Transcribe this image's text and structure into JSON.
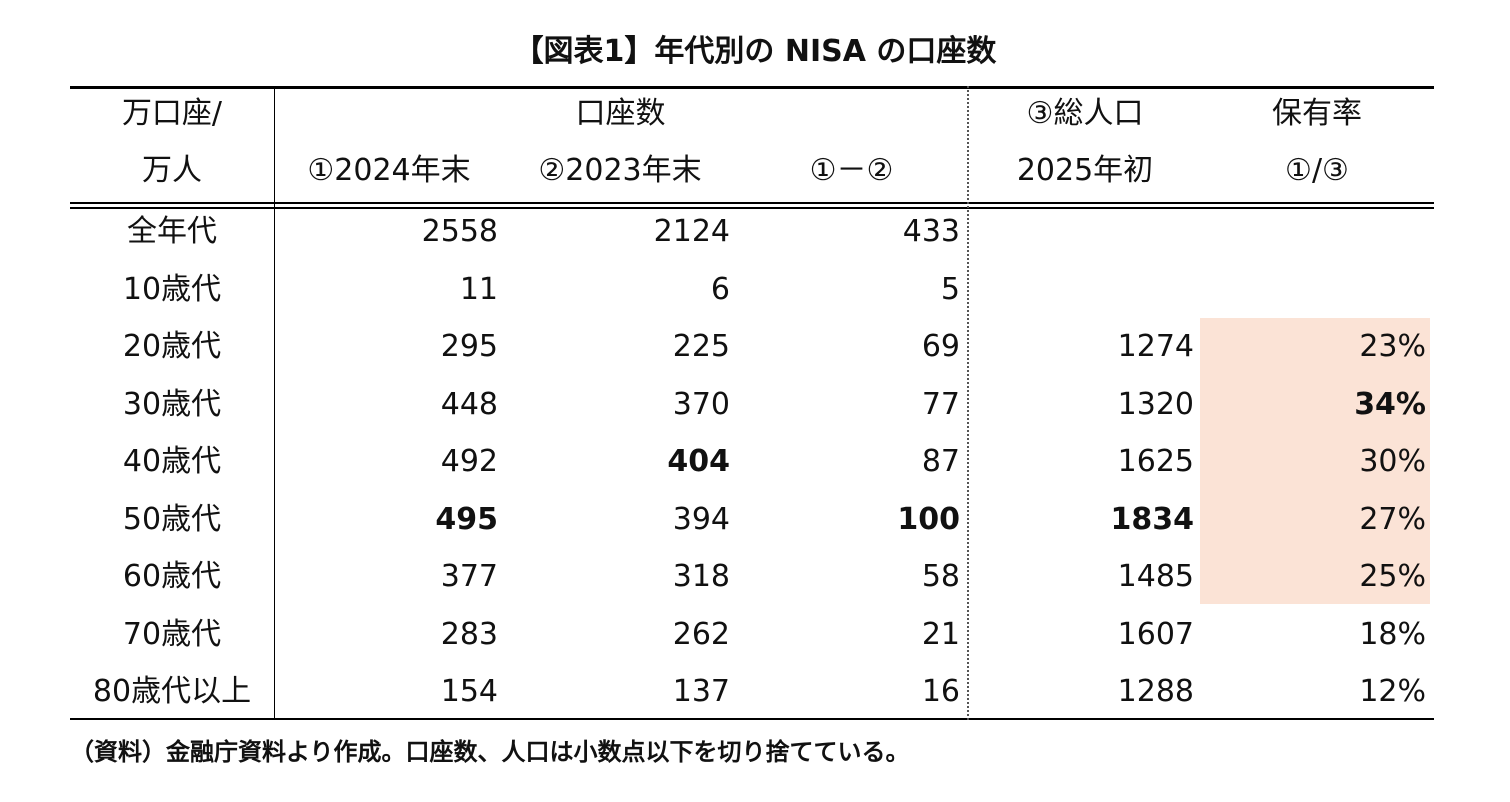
{
  "title": "【図表1】年代別の NISA の口座数",
  "header": {
    "row1": {
      "unit": "万口座/",
      "accounts": "口座数",
      "population": "③総人口",
      "ratio": "保有率"
    },
    "row2": {
      "unit": "万人",
      "col1": "①2024年末",
      "col2": "②2023年末",
      "col3": "①－②",
      "col4": "2025年初",
      "col5": "①/③"
    }
  },
  "rows": [
    {
      "label": "全年代",
      "c1": "2558",
      "c2": "2124",
      "c3": "433",
      "c4": "",
      "c5": ""
    },
    {
      "label": "10歳代",
      "c1": "11",
      "c2": "6",
      "c3": "5",
      "c4": "",
      "c5": ""
    },
    {
      "label": "20歳代",
      "c1": "295",
      "c2": "225",
      "c3": "69",
      "c4": "1274",
      "c5": "23%"
    },
    {
      "label": "30歳代",
      "c1": "448",
      "c2": "370",
      "c3": "77",
      "c4": "1320",
      "c5": "34%"
    },
    {
      "label": "40歳代",
      "c1": "492",
      "c2": "404",
      "c3": "87",
      "c4": "1625",
      "c5": "30%"
    },
    {
      "label": "50歳代",
      "c1": "495",
      "c2": "394",
      "c3": "100",
      "c4": "1834",
      "c5": "27%"
    },
    {
      "label": "60歳代",
      "c1": "377",
      "c2": "318",
      "c3": "58",
      "c4": "1485",
      "c5": "25%"
    },
    {
      "label": "70歳代",
      "c1": "283",
      "c2": "262",
      "c3": "21",
      "c4": "1607",
      "c5": "18%"
    },
    {
      "label": "80歳代以上",
      "c1": "154",
      "c2": "137",
      "c3": "16",
      "c4": "1288",
      "c5": "12%"
    }
  ],
  "highlight_color": "#fbe3d6",
  "note": "（資料）金融庁資料より作成。口座数、人口は小数点以下を切り捨てている。"
}
